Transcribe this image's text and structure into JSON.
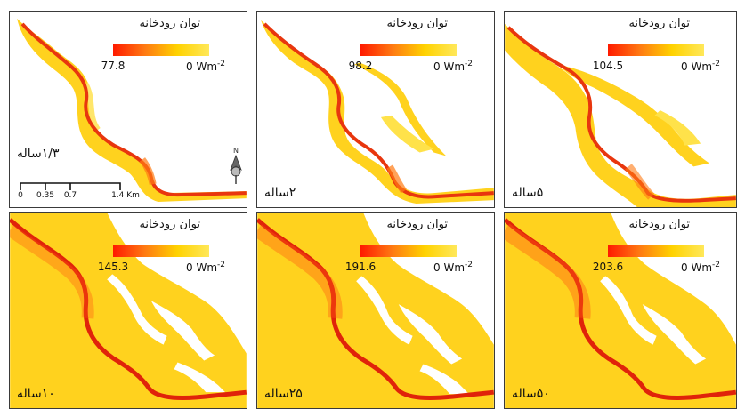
{
  "panels": [
    {
      "legend_title": "توان رودخانه",
      "max_value": "77.8",
      "min_value": "0",
      "unit": "Wm",
      "unit_exp": "-2",
      "period": "۱/۳ساله"
    },
    {
      "legend_title": "توان رودخانه",
      "max_value": "98.2",
      "min_value": "0",
      "unit": "Wm",
      "unit_exp": "-2",
      "period": "۲ساله"
    },
    {
      "legend_title": "توان رودخانه",
      "max_value": "104.5",
      "min_value": "0",
      "unit": "Wm",
      "unit_exp": "-2",
      "period": "۵ساله"
    },
    {
      "legend_title": "توان رودخانه",
      "max_value": "145.3",
      "min_value": "0",
      "unit": "Wm",
      "unit_exp": "-2",
      "period": "۱۰ساله"
    },
    {
      "legend_title": "توان رودخانه",
      "max_value": "191.6",
      "min_value": "0",
      "unit": "Wm",
      "unit_exp": "-2",
      "period": "۲۵ساله"
    },
    {
      "legend_title": "توان رودخانه",
      "max_value": "203.6",
      "min_value": "0",
      "unit": "Wm",
      "unit_exp": "-2",
      "period": "۵۰ساله"
    }
  ],
  "scalebar": {
    "ticks": [
      "0",
      "0.35",
      "0.7",
      "1.4 Km"
    ]
  },
  "north_arrow": {
    "label": "N",
    "icon": "north-arrow-icon"
  },
  "colors": {
    "high": "#ff1a00",
    "mid": "#ff7a12",
    "low": "#ffd200",
    "floodplain": "#ffdc2a",
    "channel": "#e82a10"
  }
}
